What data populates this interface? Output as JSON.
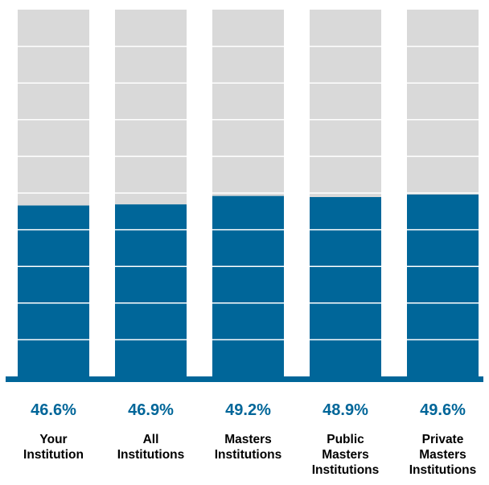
{
  "chart_data": {
    "type": "bar",
    "categories": [
      [
        "Your",
        "Institution"
      ],
      [
        "All",
        "Institutions"
      ],
      [
        "Masters",
        "Institutions"
      ],
      [
        "Public",
        "Masters",
        "Institutions"
      ],
      [
        "Private",
        "Masters",
        "Institutions"
      ]
    ],
    "values": [
      46.6,
      46.9,
      49.2,
      48.9,
      49.6
    ],
    "value_labels": [
      "46.6%",
      "46.9%",
      "49.2%",
      "48.9%",
      "49.6%"
    ],
    "ylim": [
      0,
      100
    ],
    "unit": "%",
    "grid": true,
    "colors": {
      "bar": "#006699",
      "background_bar": "#d9d9d9",
      "baseline": "#006699",
      "value_text": "#006699",
      "grid": "#ffffff"
    }
  }
}
